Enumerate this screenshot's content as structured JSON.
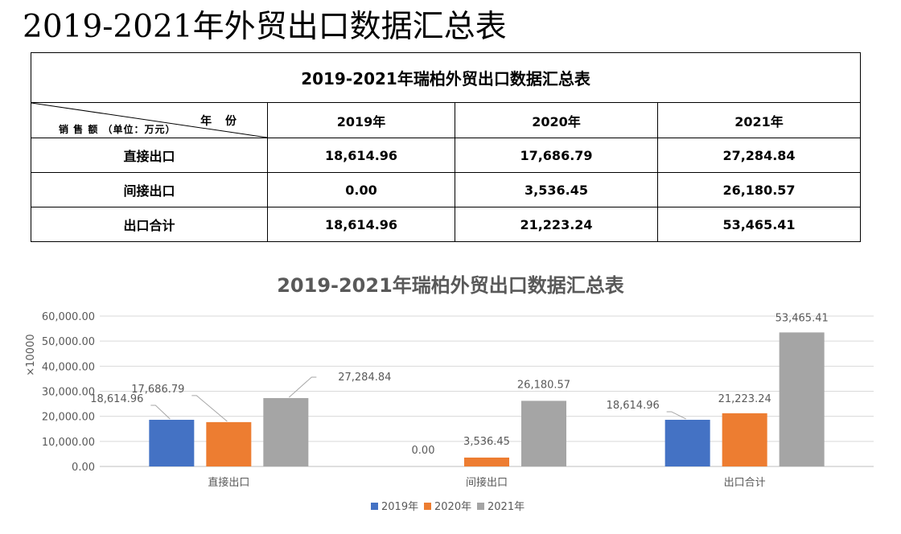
{
  "page_title": "2019-2021年外贸出口数据汇总表",
  "table": {
    "caption": "2019-2021年瑞柏外贸出口数据汇总表",
    "corner_year_label": "年 份",
    "corner_sales_label": "销 售 额 （单位：万元）",
    "columns": [
      "2019年",
      "2020年",
      "2021年"
    ],
    "rows": [
      {
        "label": "直接出口",
        "values": [
          "18,614.96",
          "17,686.79",
          "27,284.84"
        ]
      },
      {
        "label": "间接出口",
        "values": [
          "0.00",
          "3,536.45",
          "26,180.57"
        ]
      },
      {
        "label": "出口合计",
        "values": [
          "18,614.96",
          "21,223.24",
          "53,465.41"
        ]
      }
    ]
  },
  "chart_data": {
    "type": "bar",
    "title": "2019-2021年瑞柏外贸出口数据汇总表",
    "ylabel": "×10000",
    "xlabel": "",
    "categories": [
      "直接出口",
      "间接出口",
      "出口合计"
    ],
    "series": [
      {
        "name": "2019年",
        "color": "#4472c4",
        "values": [
          18614.96,
          0.0,
          18614.96
        ],
        "labels": [
          "18,614.96",
          "0.00",
          "18,614.96"
        ]
      },
      {
        "name": "2020年",
        "color": "#ed7d31",
        "values": [
          17686.79,
          3536.45,
          21223.24
        ],
        "labels": [
          "17,686.79",
          "3,536.45",
          "21,223.24"
        ]
      },
      {
        "name": "2021年",
        "color": "#a5a5a5",
        "values": [
          27284.84,
          26180.57,
          53465.41
        ],
        "labels": [
          "27,284.84",
          "26,180.57",
          "53,465.41"
        ]
      }
    ],
    "ylim": [
      0,
      60000
    ],
    "yticks": [
      "0.00",
      "10,000.00",
      "20,000.00",
      "30,000.00",
      "40,000.00",
      "50,000.00",
      "60,000.00"
    ],
    "grid": true,
    "legend_position": "bottom"
  }
}
